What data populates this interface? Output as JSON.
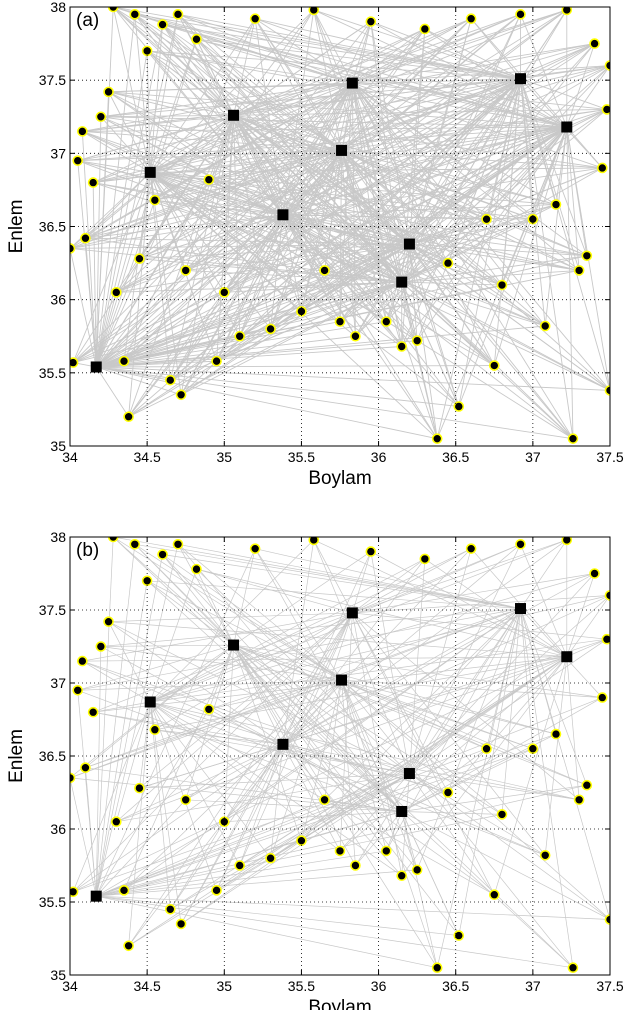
{
  "chart_data": [
    {
      "type": "scatter",
      "panel_label": "(a)",
      "xlabel": "Boylam",
      "ylabel": "Enlem",
      "xlim": [
        34,
        37.5
      ],
      "ylim": [
        35,
        38
      ],
      "xticks": [
        "34",
        "34.5",
        "35",
        "35.5",
        "36",
        "36.5",
        "37",
        "37.5"
      ],
      "yticks": [
        "35",
        "35.5",
        "36",
        "36.5",
        "37",
        "37.5",
        "38"
      ],
      "grid": true,
      "colors": {
        "lines": "#c8c8c8",
        "points": "#000000",
        "point_edge": "#ffff00",
        "stations": "#000000"
      },
      "stations": [
        {
          "x": 34.17,
          "y": 35.54
        },
        {
          "x": 34.52,
          "y": 36.87
        },
        {
          "x": 35.06,
          "y": 37.26
        },
        {
          "x": 35.38,
          "y": 36.58
        },
        {
          "x": 35.76,
          "y": 37.02
        },
        {
          "x": 35.83,
          "y": 37.48
        },
        {
          "x": 36.15,
          "y": 36.12
        },
        {
          "x": 36.2,
          "y": 36.38
        },
        {
          "x": 36.92,
          "y": 37.51
        },
        {
          "x": 37.22,
          "y": 37.18
        }
      ],
      "events": [
        {
          "x": 34.0,
          "y": 36.35
        },
        {
          "x": 34.02,
          "y": 35.57
        },
        {
          "x": 34.05,
          "y": 36.95
        },
        {
          "x": 34.08,
          "y": 37.15
        },
        {
          "x": 34.1,
          "y": 36.42
        },
        {
          "x": 34.15,
          "y": 36.8
        },
        {
          "x": 34.2,
          "y": 37.25
        },
        {
          "x": 34.25,
          "y": 37.42
        },
        {
          "x": 34.28,
          "y": 38.0
        },
        {
          "x": 34.3,
          "y": 36.05
        },
        {
          "x": 34.35,
          "y": 35.58
        },
        {
          "x": 34.38,
          "y": 35.2
        },
        {
          "x": 34.42,
          "y": 37.95
        },
        {
          "x": 34.45,
          "y": 36.28
        },
        {
          "x": 34.5,
          "y": 37.7
        },
        {
          "x": 34.55,
          "y": 36.68
        },
        {
          "x": 34.6,
          "y": 37.88
        },
        {
          "x": 34.65,
          "y": 35.45
        },
        {
          "x": 34.7,
          "y": 37.95
        },
        {
          "x": 34.72,
          "y": 35.35
        },
        {
          "x": 34.75,
          "y": 36.2
        },
        {
          "x": 34.82,
          "y": 37.78
        },
        {
          "x": 34.9,
          "y": 36.82
        },
        {
          "x": 34.95,
          "y": 35.58
        },
        {
          "x": 35.0,
          "y": 36.05
        },
        {
          "x": 35.1,
          "y": 35.75
        },
        {
          "x": 35.2,
          "y": 37.92
        },
        {
          "x": 35.3,
          "y": 35.8
        },
        {
          "x": 35.5,
          "y": 35.92
        },
        {
          "x": 35.58,
          "y": 37.98
        },
        {
          "x": 35.65,
          "y": 36.2
        },
        {
          "x": 35.75,
          "y": 35.85
        },
        {
          "x": 35.85,
          "y": 35.75
        },
        {
          "x": 35.95,
          "y": 37.9
        },
        {
          "x": 36.05,
          "y": 35.85
        },
        {
          "x": 36.15,
          "y": 35.68
        },
        {
          "x": 36.25,
          "y": 35.72
        },
        {
          "x": 36.3,
          "y": 37.85
        },
        {
          "x": 36.38,
          "y": 35.05
        },
        {
          "x": 36.45,
          "y": 36.25
        },
        {
          "x": 36.52,
          "y": 35.27
        },
        {
          "x": 36.6,
          "y": 37.92
        },
        {
          "x": 36.7,
          "y": 36.55
        },
        {
          "x": 36.75,
          "y": 35.55
        },
        {
          "x": 36.8,
          "y": 36.1
        },
        {
          "x": 36.92,
          "y": 37.95
        },
        {
          "x": 37.0,
          "y": 36.55
        },
        {
          "x": 37.08,
          "y": 35.82
        },
        {
          "x": 37.15,
          "y": 36.65
        },
        {
          "x": 37.22,
          "y": 37.98
        },
        {
          "x": 37.26,
          "y": 35.05
        },
        {
          "x": 37.3,
          "y": 36.2
        },
        {
          "x": 37.35,
          "y": 36.3
        },
        {
          "x": 37.4,
          "y": 37.75
        },
        {
          "x": 37.45,
          "y": 36.9
        },
        {
          "x": 37.48,
          "y": 37.3
        },
        {
          "x": 37.5,
          "y": 35.38
        },
        {
          "x": 37.5,
          "y": 37.6
        }
      ]
    },
    {
      "type": "scatter",
      "panel_label": "(b)",
      "xlabel": "Boylam",
      "ylabel": "Enlem",
      "xlim": [
        34,
        37.5
      ],
      "ylim": [
        35,
        38
      ],
      "xticks": [
        "34",
        "34.5",
        "35",
        "35.5",
        "36",
        "36.5",
        "37",
        "37.5"
      ],
      "yticks": [
        "35",
        "35.5",
        "36",
        "36.5",
        "37",
        "37.5",
        "38"
      ],
      "grid": true,
      "colors": {
        "lines": "#c8c8c8",
        "points": "#000000",
        "point_edge": "#ffff00",
        "stations": "#000000"
      },
      "stations": [
        {
          "x": 34.17,
          "y": 35.54
        },
        {
          "x": 34.52,
          "y": 36.87
        },
        {
          "x": 35.06,
          "y": 37.26
        },
        {
          "x": 35.38,
          "y": 36.58
        },
        {
          "x": 35.76,
          "y": 37.02
        },
        {
          "x": 35.83,
          "y": 37.48
        },
        {
          "x": 36.15,
          "y": 36.12
        },
        {
          "x": 36.2,
          "y": 36.38
        },
        {
          "x": 36.92,
          "y": 37.51
        },
        {
          "x": 37.22,
          "y": 37.18
        }
      ],
      "events": [
        {
          "x": 34.0,
          "y": 36.35
        },
        {
          "x": 34.02,
          "y": 35.57
        },
        {
          "x": 34.05,
          "y": 36.95
        },
        {
          "x": 34.08,
          "y": 37.15
        },
        {
          "x": 34.1,
          "y": 36.42
        },
        {
          "x": 34.15,
          "y": 36.8
        },
        {
          "x": 34.2,
          "y": 37.25
        },
        {
          "x": 34.25,
          "y": 37.42
        },
        {
          "x": 34.28,
          "y": 38.0
        },
        {
          "x": 34.3,
          "y": 36.05
        },
        {
          "x": 34.35,
          "y": 35.58
        },
        {
          "x": 34.38,
          "y": 35.2
        },
        {
          "x": 34.42,
          "y": 37.95
        },
        {
          "x": 34.45,
          "y": 36.28
        },
        {
          "x": 34.5,
          "y": 37.7
        },
        {
          "x": 34.55,
          "y": 36.68
        },
        {
          "x": 34.6,
          "y": 37.88
        },
        {
          "x": 34.65,
          "y": 35.45
        },
        {
          "x": 34.7,
          "y": 37.95
        },
        {
          "x": 34.72,
          "y": 35.35
        },
        {
          "x": 34.75,
          "y": 36.2
        },
        {
          "x": 34.82,
          "y": 37.78
        },
        {
          "x": 34.9,
          "y": 36.82
        },
        {
          "x": 34.95,
          "y": 35.58
        },
        {
          "x": 35.0,
          "y": 36.05
        },
        {
          "x": 35.1,
          "y": 35.75
        },
        {
          "x": 35.2,
          "y": 37.92
        },
        {
          "x": 35.3,
          "y": 35.8
        },
        {
          "x": 35.5,
          "y": 35.92
        },
        {
          "x": 35.58,
          "y": 37.98
        },
        {
          "x": 35.65,
          "y": 36.2
        },
        {
          "x": 35.75,
          "y": 35.85
        },
        {
          "x": 35.85,
          "y": 35.75
        },
        {
          "x": 35.95,
          "y": 37.9
        },
        {
          "x": 36.05,
          "y": 35.85
        },
        {
          "x": 36.15,
          "y": 35.68
        },
        {
          "x": 36.25,
          "y": 35.72
        },
        {
          "x": 36.3,
          "y": 37.85
        },
        {
          "x": 36.38,
          "y": 35.05
        },
        {
          "x": 36.45,
          "y": 36.25
        },
        {
          "x": 36.52,
          "y": 35.27
        },
        {
          "x": 36.6,
          "y": 37.92
        },
        {
          "x": 36.7,
          "y": 36.55
        },
        {
          "x": 36.75,
          "y": 35.55
        },
        {
          "x": 36.8,
          "y": 36.1
        },
        {
          "x": 36.92,
          "y": 37.95
        },
        {
          "x": 37.0,
          "y": 36.55
        },
        {
          "x": 37.08,
          "y": 35.82
        },
        {
          "x": 37.15,
          "y": 36.65
        },
        {
          "x": 37.22,
          "y": 37.98
        },
        {
          "x": 37.26,
          "y": 35.05
        },
        {
          "x": 37.3,
          "y": 36.2
        },
        {
          "x": 37.35,
          "y": 36.3
        },
        {
          "x": 37.4,
          "y": 37.75
        },
        {
          "x": 37.45,
          "y": 36.9
        },
        {
          "x": 37.48,
          "y": 37.3
        },
        {
          "x": 37.5,
          "y": 35.38
        },
        {
          "x": 37.5,
          "y": 37.6
        }
      ]
    }
  ]
}
